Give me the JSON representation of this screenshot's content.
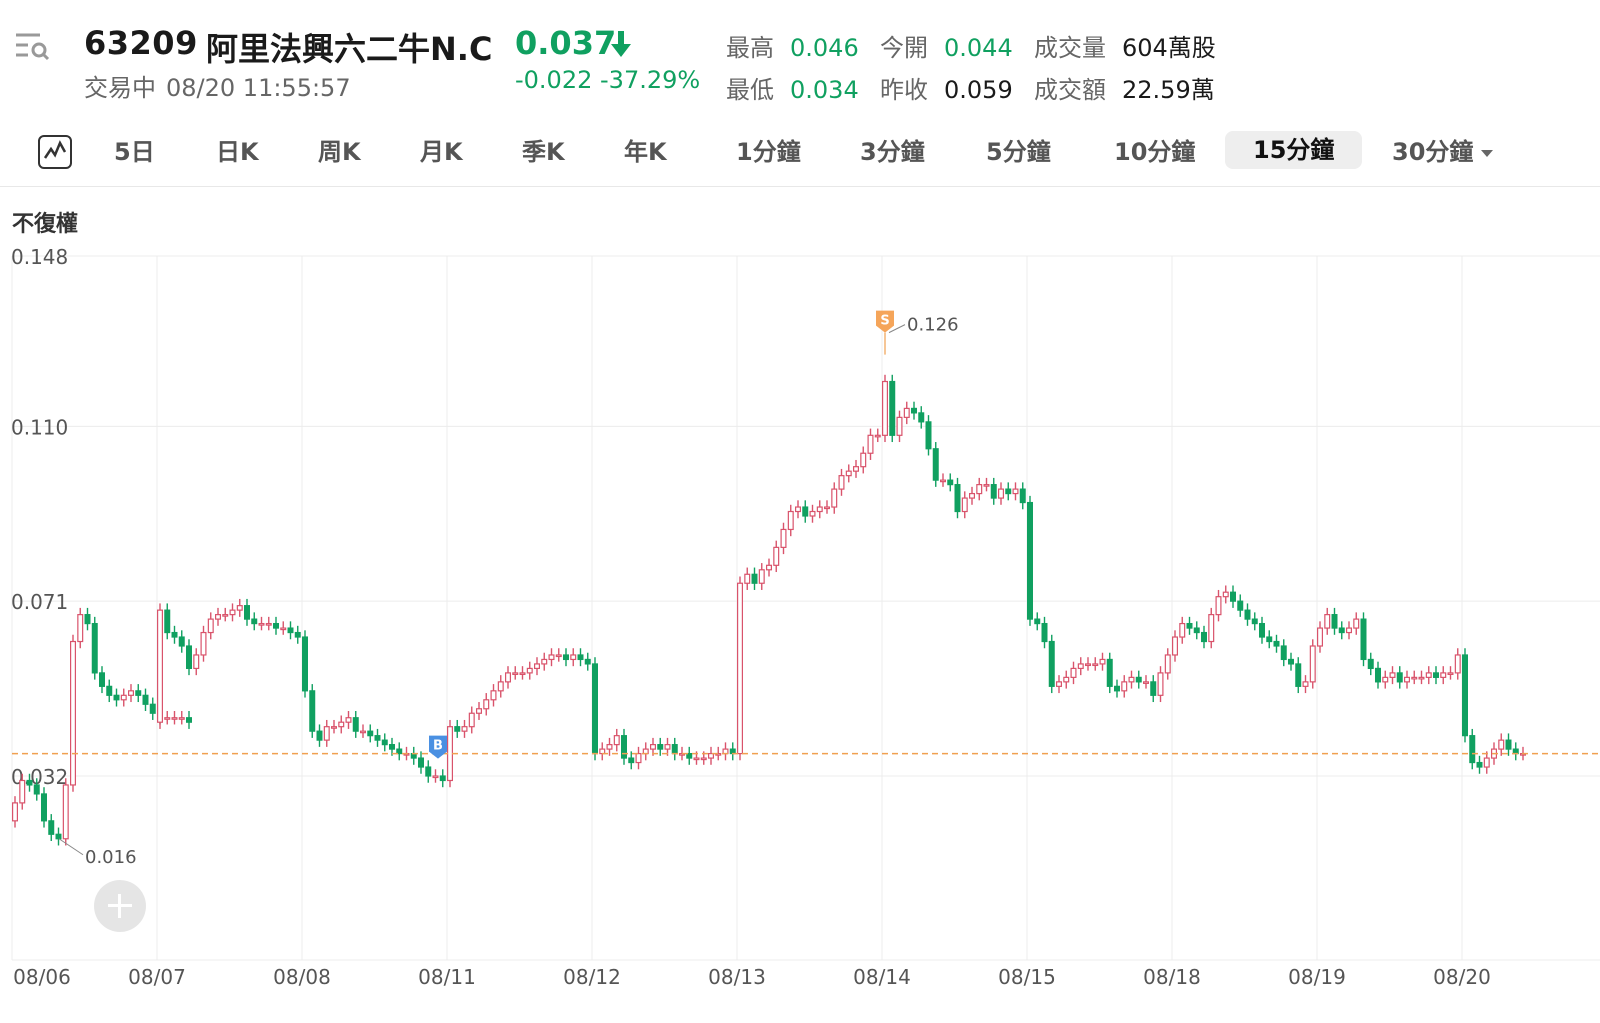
{
  "header": {
    "code": "63209",
    "name": "阿里法興六二牛N.C",
    "status": "交易中",
    "datetime": "08/20 11:55:57",
    "price": "0.037",
    "change": "-0.022",
    "change_pct": "-37.29%",
    "stats": {
      "high_label": "最高",
      "high": "0.046",
      "open_label": "今開",
      "open": "0.044",
      "volume_label": "成交量",
      "volume": "604萬股",
      "low_label": "最低",
      "low": "0.034",
      "prev_close_label": "昨收",
      "prev_close": "0.059",
      "turnover_label": "成交額",
      "turnover": "22.59萬"
    },
    "colors": {
      "down": "#10a060",
      "up": "#d9536b"
    }
  },
  "tabs": [
    {
      "label": "5日"
    },
    {
      "label": "日K"
    },
    {
      "label": "周K"
    },
    {
      "label": "月K"
    },
    {
      "label": "季K"
    },
    {
      "label": "年K"
    },
    {
      "label": "1分鐘"
    },
    {
      "label": "3分鐘"
    },
    {
      "label": "5分鐘"
    },
    {
      "label": "10分鐘"
    },
    {
      "label": "15分鐘",
      "active": true
    },
    {
      "label": "30分鐘"
    }
  ],
  "adjust_label": "不復權",
  "chart_data": {
    "type": "candlestick",
    "ylim": [
      0,
      0.148
    ],
    "y_ticks": [
      "0.148",
      "0.110",
      "0.071",
      "0.032"
    ],
    "x_ticks": [
      "08/06",
      "08/07",
      "08/08",
      "08/11",
      "08/12",
      "08/13",
      "08/14",
      "08/15",
      "08/18",
      "08/19",
      "08/20"
    ],
    "last_price_line": 0.037,
    "max_marker": {
      "label": "0.126",
      "badge": "S"
    },
    "min_marker": {
      "label": "0.016"
    },
    "buy_marker_badge": "B",
    "up_color": "#d9536b",
    "down_color": "#10a060",
    "series": [
      {
        "name": "08/06",
        "closes": [
          0.026,
          0.031,
          0.03,
          0.028,
          0.022,
          0.019,
          0.018,
          0.03,
          0.062,
          0.068,
          0.066,
          0.055,
          0.052,
          0.05,
          0.049,
          0.05,
          0.051,
          0.05,
          0.048,
          0.046,
          0.045,
          0.045,
          0.045,
          0.045,
          0.044
        ]
      },
      {
        "name": "08/07",
        "closes": [
          0.069,
          0.064,
          0.063,
          0.061,
          0.056,
          0.059,
          0.064,
          0.067,
          0.068,
          0.068,
          0.069,
          0.07,
          0.067,
          0.066,
          0.066,
          0.066,
          0.065,
          0.065,
          0.064,
          0.063
        ]
      },
      {
        "name": "08/08",
        "closes": [
          0.051,
          0.042,
          0.04,
          0.043,
          0.043,
          0.044,
          0.045,
          0.042,
          0.042,
          0.041,
          0.04,
          0.039,
          0.038,
          0.037,
          0.037,
          0.036,
          0.034,
          0.032,
          0.032,
          0.031
        ]
      },
      {
        "name": "08/11",
        "closes": [
          0.043,
          0.042,
          0.043,
          0.046,
          0.047,
          0.049,
          0.051,
          0.053,
          0.055,
          0.055,
          0.055,
          0.056,
          0.057,
          0.058,
          0.059,
          0.059,
          0.058,
          0.059,
          0.058,
          0.057
        ]
      },
      {
        "name": "08/12",
        "closes": [
          0.037,
          0.038,
          0.039,
          0.041,
          0.036,
          0.035,
          0.037,
          0.038,
          0.039,
          0.038,
          0.039,
          0.037,
          0.037,
          0.036,
          0.036,
          0.036,
          0.037,
          0.037,
          0.038,
          0.037
        ]
      },
      {
        "name": "08/13",
        "closes": [
          0.075,
          0.077,
          0.075,
          0.078,
          0.079,
          0.083,
          0.087,
          0.091,
          0.092,
          0.09,
          0.091,
          0.092,
          0.092,
          0.096,
          0.099,
          0.1,
          0.101,
          0.104,
          0.108,
          0.108
        ]
      },
      {
        "name": "08/14",
        "closes": [
          0.12,
          0.108,
          0.112,
          0.114,
          0.113,
          0.111,
          0.105,
          0.098,
          0.098,
          0.097,
          0.091,
          0.094,
          0.095,
          0.097,
          0.097,
          0.094,
          0.096,
          0.095,
          0.096,
          0.093
        ]
      },
      {
        "name": "08/15",
        "closes": [
          0.067,
          0.066,
          0.062,
          0.052,
          0.053,
          0.054,
          0.056,
          0.057,
          0.057,
          0.057,
          0.058,
          0.052,
          0.051,
          0.053,
          0.054,
          0.053,
          0.053,
          0.05,
          0.055,
          0.059
        ]
      },
      {
        "name": "08/18",
        "closes": [
          0.063,
          0.066,
          0.065,
          0.064,
          0.062,
          0.068,
          0.072,
          0.073,
          0.071,
          0.069,
          0.067,
          0.066,
          0.063,
          0.062,
          0.061,
          0.058,
          0.057,
          0.052,
          0.053,
          0.061
        ]
      },
      {
        "name": "08/19",
        "closes": [
          0.065,
          0.068,
          0.065,
          0.064,
          0.065,
          0.067,
          0.058,
          0.056,
          0.053,
          0.054,
          0.055,
          0.053,
          0.054,
          0.054,
          0.054,
          0.055,
          0.054,
          0.055,
          0.055,
          0.059
        ]
      },
      {
        "name": "08/20",
        "closes": [
          0.041,
          0.035,
          0.034,
          0.036,
          0.038,
          0.04,
          0.038,
          0.037,
          0.037
        ]
      }
    ]
  }
}
